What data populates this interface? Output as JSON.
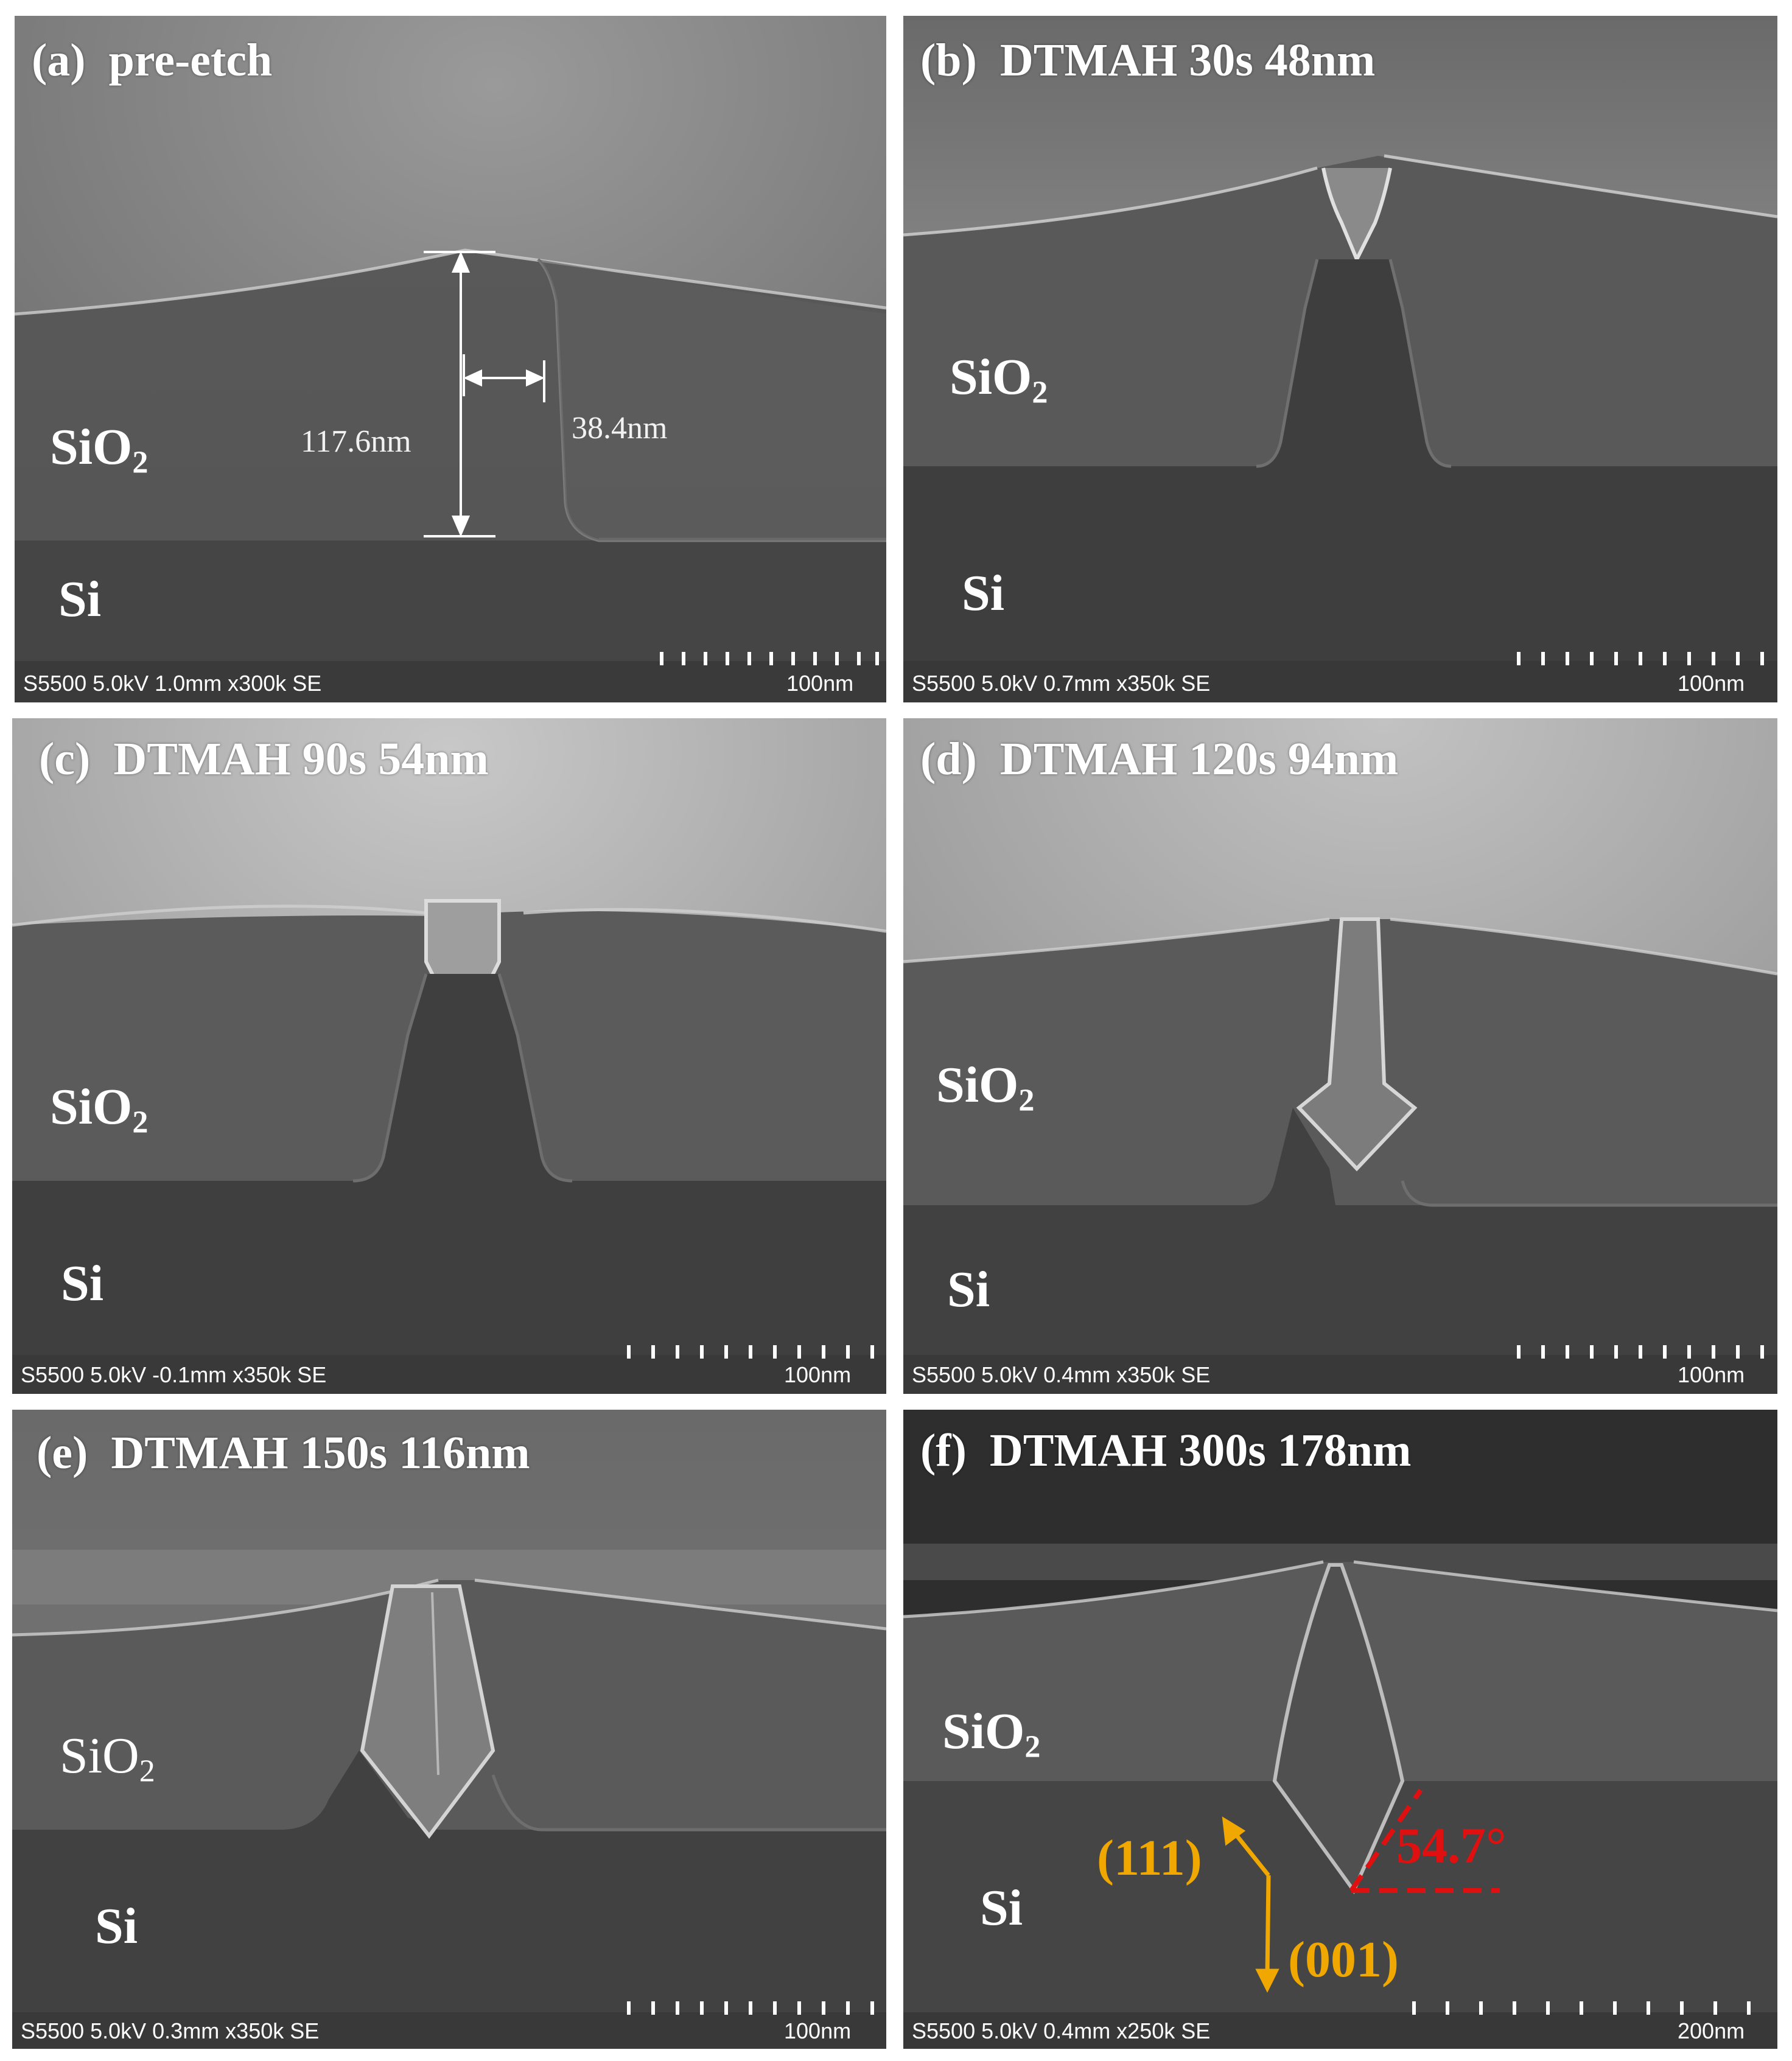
{
  "figure": {
    "panels": [
      {
        "id": "a",
        "title": "(a)  pre-etch",
        "layer_top": "SiO",
        "layer_top_sub": "2",
        "layer_bottom": "Si",
        "footer": "S5500 5.0kV 1.0mm x300k SE",
        "scale": "100nm",
        "measure_height": "117.6nm",
        "measure_width": "38.4nm"
      },
      {
        "id": "b",
        "title": "(b)  DTMAH 30s 48nm",
        "layer_top": "SiO",
        "layer_top_sub": "2",
        "layer_bottom": "Si",
        "footer": "S5500 5.0kV 0.7mm x350k SE",
        "scale": "100nm"
      },
      {
        "id": "c",
        "title": "(c)  DTMAH 90s 54nm",
        "layer_top": "SiO",
        "layer_top_sub": "2",
        "layer_bottom": "Si",
        "footer": "S5500 5.0kV -0.1mm x350k SE",
        "scale": "100nm"
      },
      {
        "id": "d",
        "title": "(d)  DTMAH 120s 94nm",
        "layer_top": "SiO",
        "layer_top_sub": "2",
        "layer_bottom": "Si",
        "footer": "S5500 5.0kV 0.4mm x350k SE",
        "scale": "100nm"
      },
      {
        "id": "e",
        "title": "(e)  DTMAH 150s 116nm",
        "layer_top": "SiO",
        "layer_top_sub": "2",
        "layer_bottom": "Si",
        "footer": "S5500 5.0kV 0.3mm x350k SE",
        "scale": "100nm"
      },
      {
        "id": "f",
        "title": "(f)  DTMAH 300s 178nm",
        "layer_top": "SiO",
        "layer_top_sub": "2",
        "layer_bottom": "Si",
        "footer": "S5500 5.0kV 0.4mm x250k SE",
        "scale": "200nm",
        "direction_111": "(111)",
        "direction_001": "(001)",
        "angle": "54.7°"
      }
    ],
    "colors": {
      "background": "#ffffff",
      "oxide_band": "#5e5e5e",
      "silicon_band": "#3f3f3f",
      "upper_region": "#8a8a8a",
      "edge_glow": "#d8d8d8",
      "annotation_orange": "#f0a800",
      "annotation_red": "#e01010"
    }
  }
}
